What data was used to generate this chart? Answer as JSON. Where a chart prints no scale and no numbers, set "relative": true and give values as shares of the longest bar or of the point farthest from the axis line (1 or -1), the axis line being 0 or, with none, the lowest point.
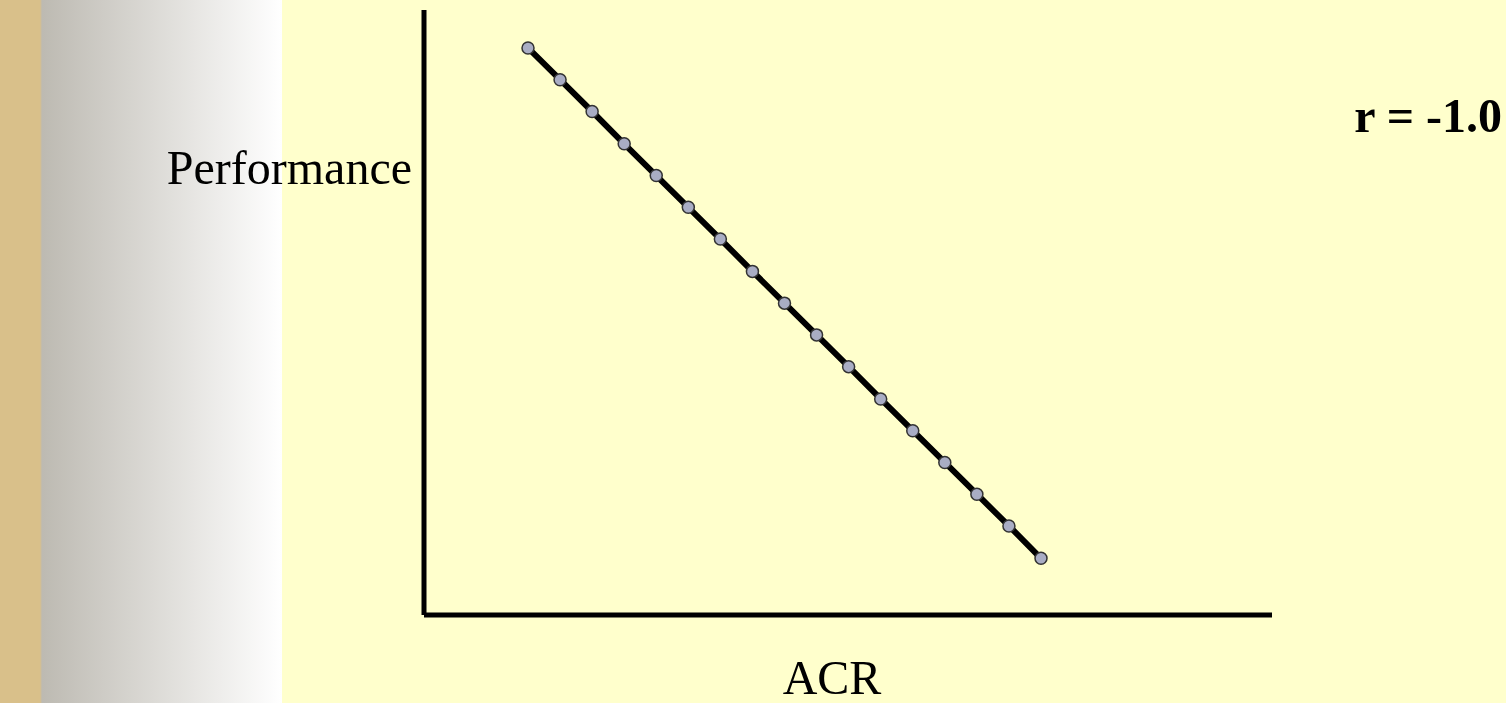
{
  "chart_data": {
    "type": "line",
    "relative": true,
    "xlabel": "ACR",
    "ylabel": "Performance",
    "annotations": [
      "r = -1.0"
    ],
    "marker": "circle",
    "line_style": "solid",
    "categories": [
      null,
      null,
      null,
      null,
      null,
      null,
      null,
      null,
      null,
      null,
      null,
      null,
      null,
      null,
      null,
      null,
      null
    ],
    "series": [
      {
        "color": "#000000",
        "values": [
          1.0,
          0.944,
          0.888,
          0.831,
          0.775,
          0.719,
          0.663,
          0.606,
          0.55,
          0.494,
          0.438,
          0.381,
          0.325,
          0.269,
          0.213,
          0.157,
          0.1
        ]
      }
    ]
  }
}
